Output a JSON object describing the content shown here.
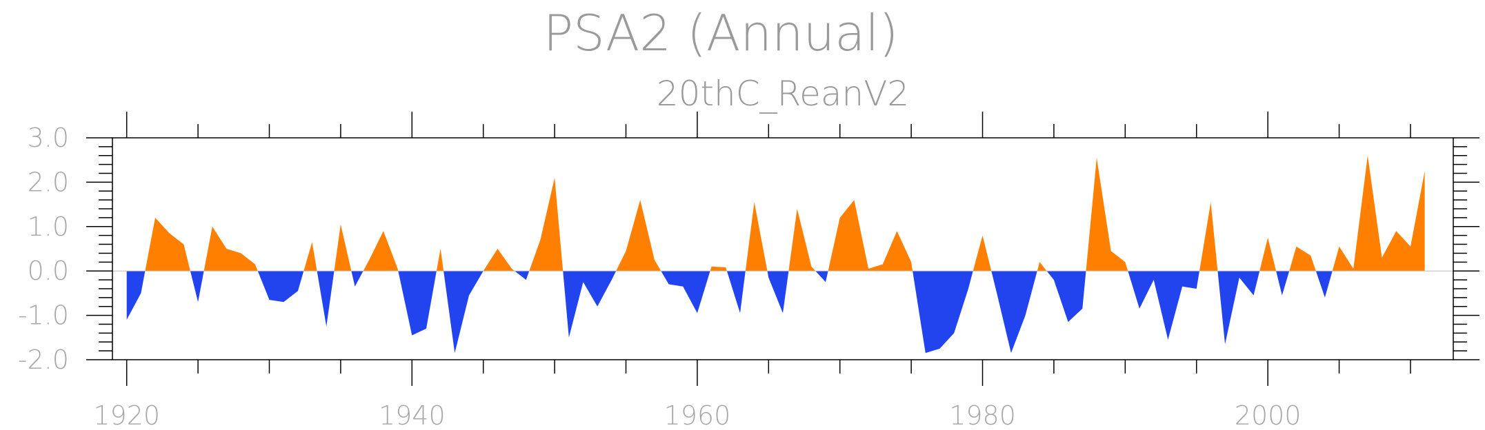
{
  "chart_data": {
    "type": "area",
    "title": "PSA2 (Annual)",
    "subtitle": "20thC_ReanV2",
    "xlabel": "",
    "ylabel": "",
    "xlim": [
      1919,
      2013
    ],
    "ylim": [
      -2.0,
      3.0
    ],
    "x_ticks": [
      "1920",
      "1940",
      "1960",
      "1980",
      "2000"
    ],
    "y_ticks": [
      "3.0",
      "2.0",
      "1.0",
      "0.0",
      "-1.0",
      "-2.0"
    ],
    "positive_color": "#ff8000",
    "negative_color": "#2244ee",
    "grid": false,
    "series": [
      {
        "x": [
          1920,
          1921,
          1922,
          1923,
          1924,
          1925,
          1926,
          1927,
          1928,
          1929,
          1930,
          1931,
          1932,
          1933,
          1934,
          1935,
          1936,
          1937,
          1938,
          1939,
          1940,
          1941,
          1942,
          1943,
          1944,
          1945,
          1946,
          1947,
          1948,
          1949,
          1950,
          1951,
          1952,
          1953,
          1954,
          1955,
          1956,
          1957,
          1958,
          1959,
          1960,
          1961,
          1962,
          1963,
          1964,
          1965,
          1966,
          1967,
          1968,
          1969,
          1970,
          1971,
          1972,
          1973,
          1974,
          1975,
          1976,
          1977,
          1978,
          1979,
          1980,
          1981,
          1982,
          1983,
          1984,
          1985,
          1986,
          1987,
          1988,
          1989,
          1990,
          1991,
          1992,
          1993,
          1994,
          1995,
          1996,
          1997,
          1998,
          1999,
          2000,
          2001,
          2002,
          2003,
          2004,
          2005,
          2006,
          2007,
          2008,
          2009,
          2010,
          2011
        ],
        "values": [
          -1.1,
          -0.5,
          1.2,
          0.85,
          0.6,
          -0.7,
          1.0,
          0.5,
          0.4,
          0.15,
          -0.65,
          -0.7,
          -0.45,
          0.65,
          -1.25,
          1.05,
          -0.35,
          0.25,
          0.9,
          0.05,
          -1.45,
          -1.3,
          0.5,
          -1.85,
          -0.55,
          0.0,
          0.5,
          0.05,
          -0.2,
          0.7,
          2.1,
          -1.5,
          -0.25,
          -0.8,
          -0.2,
          0.45,
          1.6,
          0.25,
          -0.3,
          -0.35,
          -0.95,
          0.1,
          0.08,
          -0.95,
          1.55,
          -0.15,
          -0.95,
          1.4,
          0.1,
          -0.25,
          1.2,
          1.6,
          0.05,
          0.15,
          0.9,
          0.2,
          -1.85,
          -1.75,
          -1.4,
          -0.4,
          0.8,
          -0.5,
          -1.85,
          -1.0,
          0.2,
          -0.2,
          -1.15,
          -0.85,
          2.55,
          0.45,
          0.2,
          -0.85,
          -0.2,
          -1.55,
          -0.35,
          -0.4,
          1.55,
          -1.65,
          -0.15,
          -0.55,
          0.75,
          -0.55,
          0.55,
          0.35,
          -0.6,
          0.55,
          0.05,
          2.6,
          0.3,
          0.9,
          0.55,
          2.25
        ]
      }
    ]
  }
}
